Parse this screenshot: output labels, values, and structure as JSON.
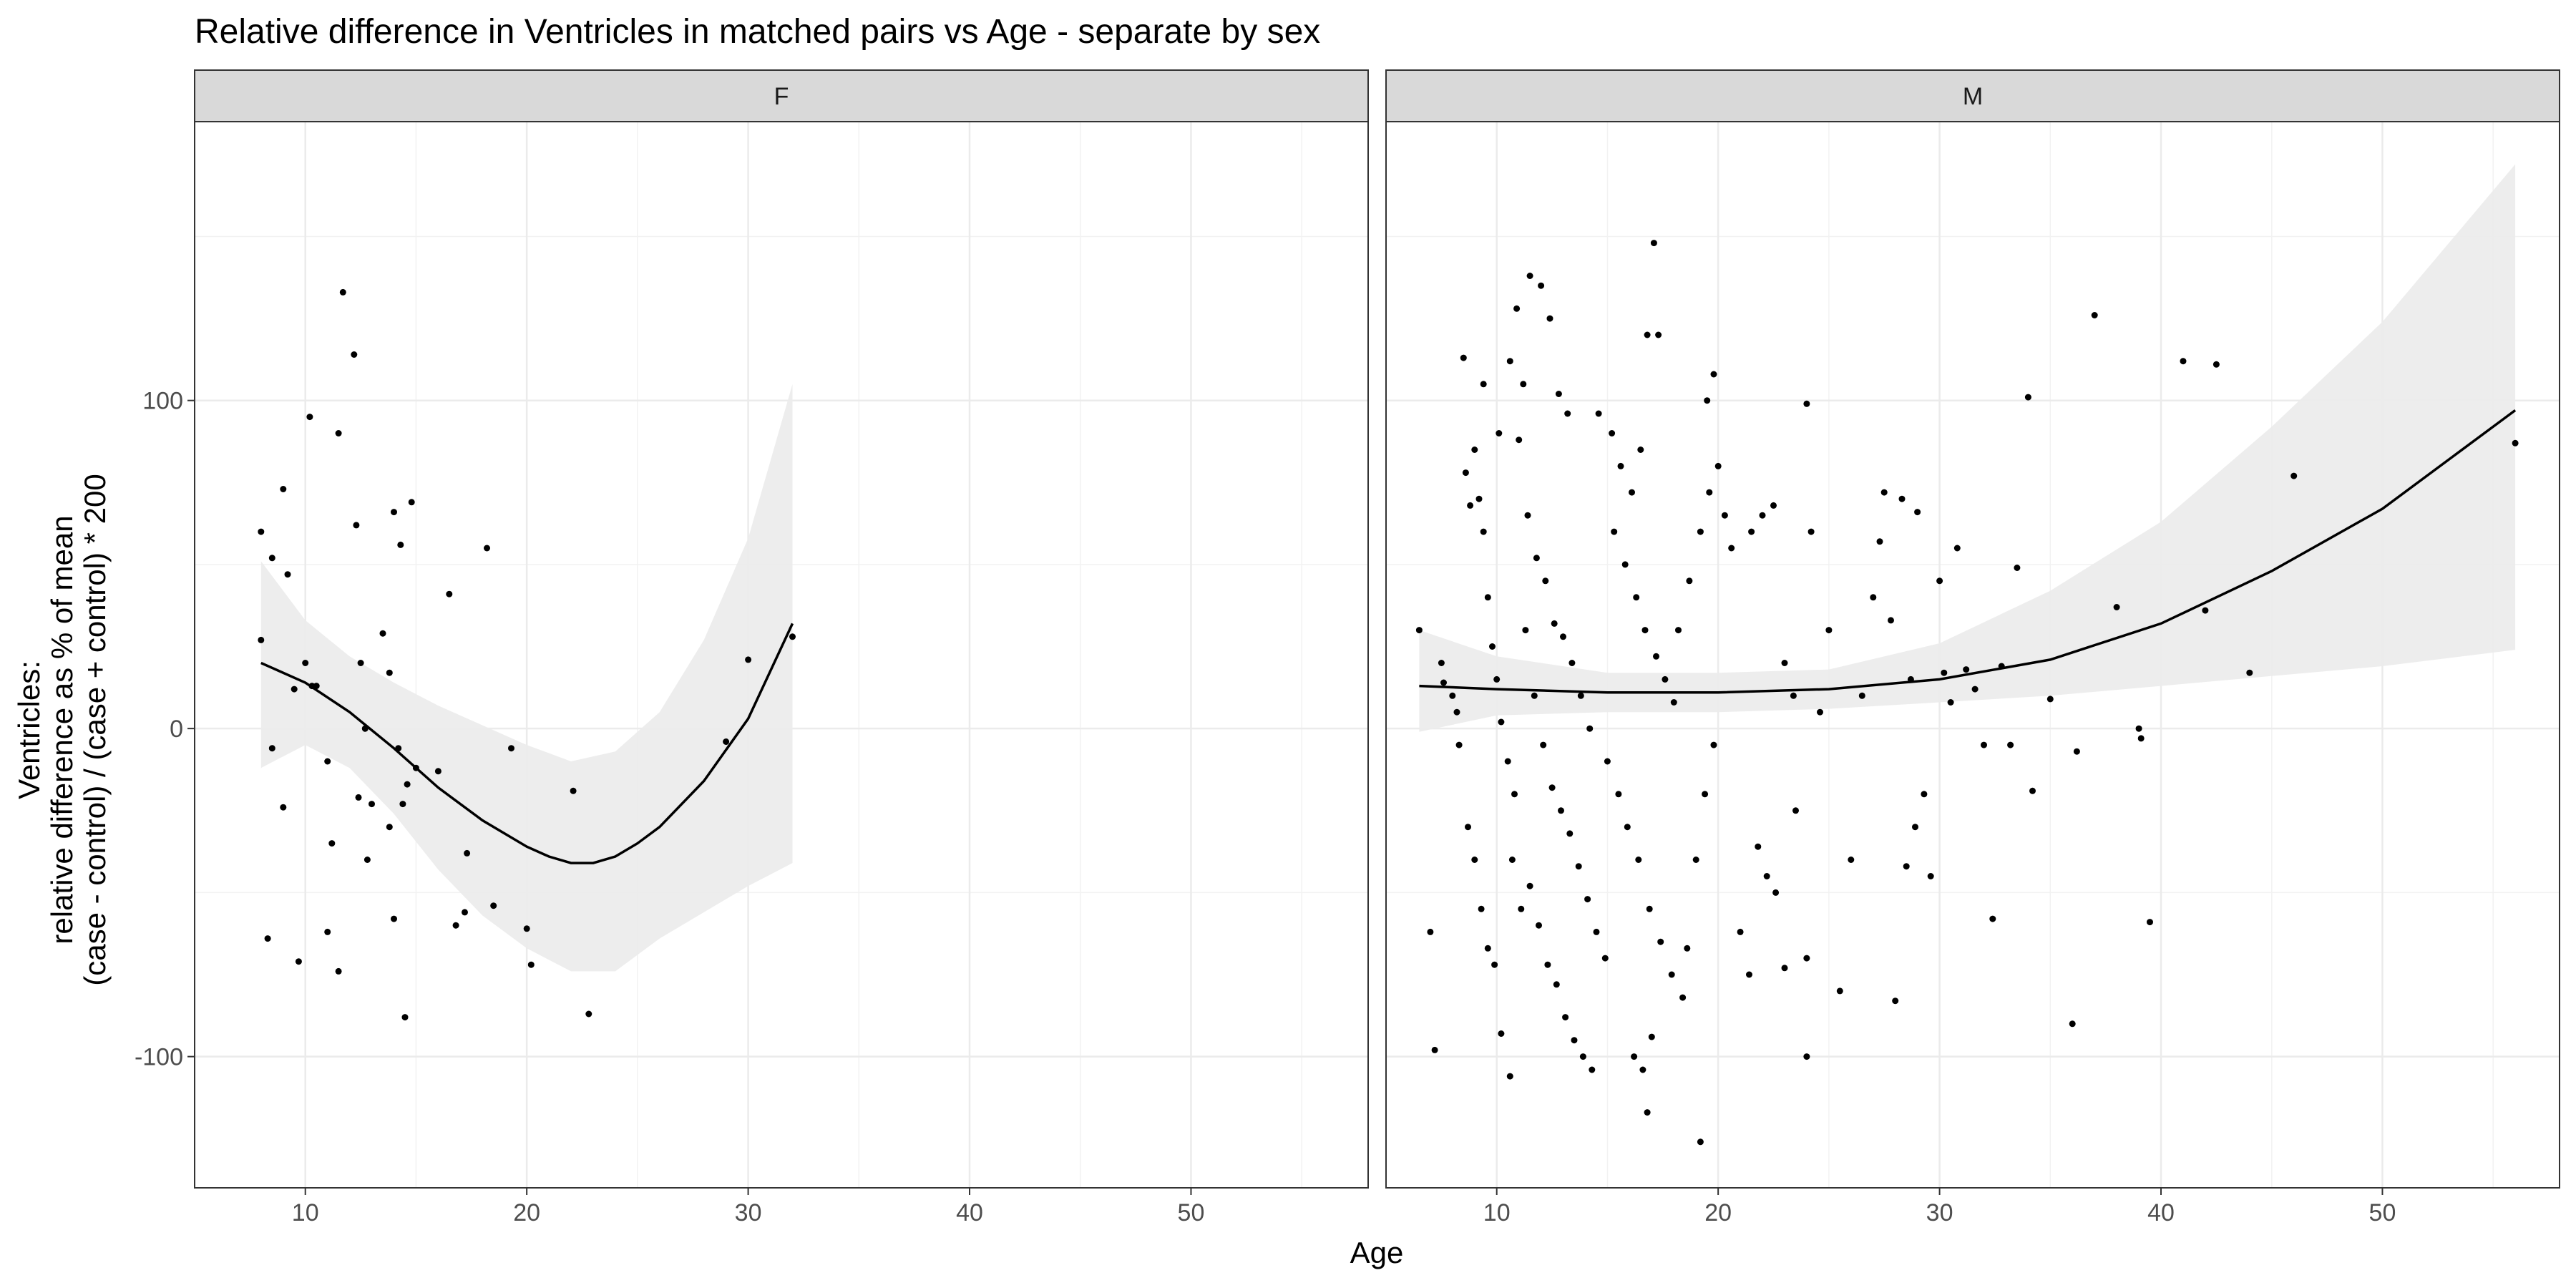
{
  "chart_data": {
    "type": "scatter",
    "title": "Relative difference in Ventricles in matched pairs vs Age - separate by sex",
    "xlabel": "Age",
    "ylabel": [
      "Ventricles:",
      "relative difference as % of mean",
      "(case - control) / (case + control) * 200"
    ],
    "xlim": [
      5,
      58
    ],
    "ylim": [
      -140,
      185
    ],
    "xticks": [
      10,
      20,
      30,
      40,
      50
    ],
    "yticks": [
      -100,
      0,
      100
    ],
    "grid": true,
    "facets": [
      {
        "label": "F",
        "points": [
          [
            8,
            60
          ],
          [
            8.5,
            52
          ],
          [
            9,
            73
          ],
          [
            9.2,
            47
          ],
          [
            8,
            27
          ],
          [
            8.5,
            -6
          ],
          [
            9.5,
            12
          ],
          [
            10,
            20
          ],
          [
            10.2,
            95
          ],
          [
            10.3,
            13
          ],
          [
            10.5,
            13
          ],
          [
            11.7,
            133
          ],
          [
            12.2,
            114
          ],
          [
            11.5,
            90
          ],
          [
            12.3,
            62
          ],
          [
            12.5,
            20
          ],
          [
            13.5,
            29
          ],
          [
            14,
            66
          ],
          [
            14.3,
            56
          ],
          [
            14.8,
            69
          ],
          [
            13.8,
            17
          ],
          [
            11,
            -10
          ],
          [
            11.2,
            -35
          ],
          [
            12.4,
            -21
          ],
          [
            12.7,
            0
          ],
          [
            13,
            -23
          ],
          [
            12.8,
            -40
          ],
          [
            13.8,
            -30
          ],
          [
            14.2,
            -6
          ],
          [
            14.4,
            -23
          ],
          [
            14.6,
            -17
          ],
          [
            15,
            -12
          ],
          [
            16,
            -13
          ],
          [
            16.5,
            41
          ],
          [
            17.3,
            -38
          ],
          [
            18.2,
            55
          ],
          [
            8.3,
            -64
          ],
          [
            9,
            -24
          ],
          [
            9.7,
            -71
          ],
          [
            11,
            -62
          ],
          [
            11.5,
            -74
          ],
          [
            14,
            -58
          ],
          [
            14.5,
            -88
          ],
          [
            16.8,
            -60
          ],
          [
            17.2,
            -56
          ],
          [
            18.5,
            -54
          ],
          [
            19.3,
            -6
          ],
          [
            20,
            -61
          ],
          [
            20.2,
            -72
          ],
          [
            22.1,
            -19
          ],
          [
            22.8,
            -87
          ],
          [
            29,
            -4
          ],
          [
            30,
            21
          ],
          [
            32,
            28
          ]
        ],
        "trend": [
          [
            8,
            20
          ],
          [
            10,
            14
          ],
          [
            12,
            5
          ],
          [
            14,
            -6
          ],
          [
            16,
            -18
          ],
          [
            18,
            -28
          ],
          [
            20,
            -36
          ],
          [
            21,
            -39
          ],
          [
            22,
            -41
          ],
          [
            23,
            -41
          ],
          [
            24,
            -39
          ],
          [
            25,
            -35
          ],
          [
            26,
            -30
          ],
          [
            28,
            -16
          ],
          [
            30,
            3
          ],
          [
            32,
            32
          ]
        ],
        "ci_upper": [
          [
            8,
            51
          ],
          [
            10,
            33
          ],
          [
            12,
            22
          ],
          [
            14,
            14
          ],
          [
            16,
            7
          ],
          [
            18,
            1
          ],
          [
            20,
            -5
          ],
          [
            22,
            -10
          ],
          [
            24,
            -7
          ],
          [
            26,
            5
          ],
          [
            28,
            27
          ],
          [
            30,
            58
          ],
          [
            32,
            105
          ]
        ],
        "ci_lower": [
          [
            8,
            -12
          ],
          [
            10,
            -5
          ],
          [
            12,
            -12
          ],
          [
            14,
            -26
          ],
          [
            16,
            -43
          ],
          [
            18,
            -57
          ],
          [
            20,
            -67
          ],
          [
            22,
            -74
          ],
          [
            24,
            -74
          ],
          [
            26,
            -64
          ],
          [
            28,
            -56
          ],
          [
            30,
            -48
          ],
          [
            32,
            -41
          ]
        ]
      },
      {
        "label": "M",
        "points": [
          [
            6.5,
            30
          ],
          [
            7,
            -62
          ],
          [
            7.2,
            -98
          ],
          [
            7.5,
            20
          ],
          [
            7.6,
            14
          ],
          [
            8,
            10
          ],
          [
            8.2,
            5
          ],
          [
            8.5,
            113
          ],
          [
            8.6,
            78
          ],
          [
            8.8,
            68
          ],
          [
            9,
            85
          ],
          [
            9.2,
            70
          ],
          [
            9.4,
            60
          ],
          [
            9.6,
            40
          ],
          [
            9.8,
            25
          ],
          [
            10,
            15
          ],
          [
            10.2,
            2
          ],
          [
            10.5,
            -10
          ],
          [
            10.8,
            -20
          ],
          [
            8.3,
            -5
          ],
          [
            8.7,
            -30
          ],
          [
            9,
            -40
          ],
          [
            9.3,
            -55
          ],
          [
            9.6,
            -67
          ],
          [
            9.9,
            -72
          ],
          [
            10.2,
            -93
          ],
          [
            10.6,
            -106
          ],
          [
            10.1,
            90
          ],
          [
            10.6,
            112
          ],
          [
            10.9,
            128
          ],
          [
            11.2,
            105
          ],
          [
            11.5,
            138
          ],
          [
            12,
            135
          ],
          [
            12.4,
            125
          ],
          [
            12.8,
            102
          ],
          [
            13.2,
            96
          ],
          [
            9.4,
            105
          ],
          [
            11,
            88
          ],
          [
            11.4,
            65
          ],
          [
            11.8,
            52
          ],
          [
            12.2,
            45
          ],
          [
            12.6,
            32
          ],
          [
            13,
            28
          ],
          [
            13.4,
            20
          ],
          [
            13.8,
            10
          ],
          [
            14.2,
            0
          ],
          [
            10.7,
            -40
          ],
          [
            11.1,
            -55
          ],
          [
            11.5,
            -48
          ],
          [
            11.9,
            -60
          ],
          [
            12.3,
            -72
          ],
          [
            12.7,
            -78
          ],
          [
            13.1,
            -88
          ],
          [
            13.5,
            -95
          ],
          [
            13.9,
            -100
          ],
          [
            14.3,
            -104
          ],
          [
            11.3,
            30
          ],
          [
            11.7,
            10
          ],
          [
            12.1,
            -5
          ],
          [
            12.5,
            -18
          ],
          [
            12.9,
            -25
          ],
          [
            13.3,
            -32
          ],
          [
            13.7,
            -42
          ],
          [
            14.1,
            -52
          ],
          [
            14.5,
            -62
          ],
          [
            14.9,
            -70
          ],
          [
            14.6,
            96
          ],
          [
            15.2,
            90
          ],
          [
            15.6,
            80
          ],
          [
            16.1,
            72
          ],
          [
            16.5,
            85
          ],
          [
            16.8,
            120
          ],
          [
            17.1,
            148
          ],
          [
            17.3,
            120
          ],
          [
            15.3,
            60
          ],
          [
            15.8,
            50
          ],
          [
            16.3,
            40
          ],
          [
            16.7,
            30
          ],
          [
            17.2,
            22
          ],
          [
            17.6,
            15
          ],
          [
            18,
            8
          ],
          [
            15,
            -10
          ],
          [
            15.5,
            -20
          ],
          [
            15.9,
            -30
          ],
          [
            16.4,
            -40
          ],
          [
            16.9,
            -55
          ],
          [
            17.4,
            -65
          ],
          [
            17.9,
            -75
          ],
          [
            18.4,
            -82
          ],
          [
            16.2,
            -100
          ],
          [
            16.6,
            -104
          ],
          [
            17,
            -94
          ],
          [
            16.8,
            -117
          ],
          [
            19.2,
            -126
          ],
          [
            18.6,
            -67
          ],
          [
            19,
            -40
          ],
          [
            19.4,
            -20
          ],
          [
            19.8,
            -5
          ],
          [
            18.2,
            30
          ],
          [
            18.7,
            45
          ],
          [
            19.2,
            60
          ],
          [
            19.6,
            72
          ],
          [
            20,
            80
          ],
          [
            19.5,
            100
          ],
          [
            19.8,
            108
          ],
          [
            20.3,
            65
          ],
          [
            20.6,
            55
          ],
          [
            21,
            -62
          ],
          [
            21.4,
            -75
          ],
          [
            21.8,
            -36
          ],
          [
            22.2,
            -45
          ],
          [
            22.6,
            -50
          ],
          [
            23,
            -73
          ],
          [
            23.5,
            -25
          ],
          [
            24,
            -70
          ],
          [
            24,
            -100
          ],
          [
            24,
            99
          ],
          [
            21.5,
            60
          ],
          [
            22,
            65
          ],
          [
            22.5,
            68
          ],
          [
            23,
            20
          ],
          [
            23.4,
            10
          ],
          [
            24.2,
            60
          ],
          [
            24.6,
            5
          ],
          [
            25,
            30
          ],
          [
            25.5,
            -80
          ],
          [
            26,
            -40
          ],
          [
            26.5,
            10
          ],
          [
            27,
            40
          ],
          [
            27.3,
            57
          ],
          [
            27.5,
            72
          ],
          [
            27.8,
            33
          ],
          [
            28,
            -83
          ],
          [
            28.3,
            70
          ],
          [
            28.5,
            -42
          ],
          [
            28.7,
            15
          ],
          [
            28.9,
            -30
          ],
          [
            29,
            66
          ],
          [
            29.3,
            -20
          ],
          [
            29.6,
            -45
          ],
          [
            30,
            45
          ],
          [
            30.2,
            17
          ],
          [
            30.5,
            8
          ],
          [
            30.8,
            55
          ],
          [
            31.2,
            18
          ],
          [
            31.6,
            12
          ],
          [
            32,
            -5
          ],
          [
            32.4,
            -58
          ],
          [
            32.8,
            19
          ],
          [
            33.2,
            -5
          ],
          [
            33.5,
            49
          ],
          [
            34,
            101
          ],
          [
            34.2,
            -19
          ],
          [
            35,
            9
          ],
          [
            36,
            -90
          ],
          [
            36.2,
            -7
          ],
          [
            37,
            126
          ],
          [
            38,
            37
          ],
          [
            39,
            0
          ],
          [
            39.1,
            -3
          ],
          [
            39.5,
            -59
          ],
          [
            41,
            112
          ],
          [
            42,
            36
          ],
          [
            42.5,
            111
          ],
          [
            44,
            17
          ],
          [
            46,
            77
          ],
          [
            56,
            87
          ]
        ],
        "trend": [
          [
            6.5,
            13
          ],
          [
            10,
            12
          ],
          [
            15,
            11
          ],
          [
            20,
            11
          ],
          [
            25,
            12
          ],
          [
            30,
            15
          ],
          [
            35,
            21
          ],
          [
            40,
            32
          ],
          [
            45,
            48
          ],
          [
            50,
            67
          ],
          [
            56,
            97
          ]
        ],
        "ci_upper": [
          [
            6.5,
            30
          ],
          [
            10,
            22
          ],
          [
            15,
            17
          ],
          [
            20,
            17
          ],
          [
            25,
            18
          ],
          [
            30,
            26
          ],
          [
            35,
            42
          ],
          [
            40,
            63
          ],
          [
            45,
            92
          ],
          [
            50,
            124
          ],
          [
            56,
            172
          ]
        ],
        "ci_lower": [
          [
            6.5,
            -1
          ],
          [
            10,
            4
          ],
          [
            15,
            5
          ],
          [
            20,
            5
          ],
          [
            25,
            6
          ],
          [
            30,
            8
          ],
          [
            35,
            10
          ],
          [
            40,
            13
          ],
          [
            45,
            16
          ],
          [
            50,
            19
          ],
          [
            56,
            24
          ]
        ]
      }
    ]
  }
}
